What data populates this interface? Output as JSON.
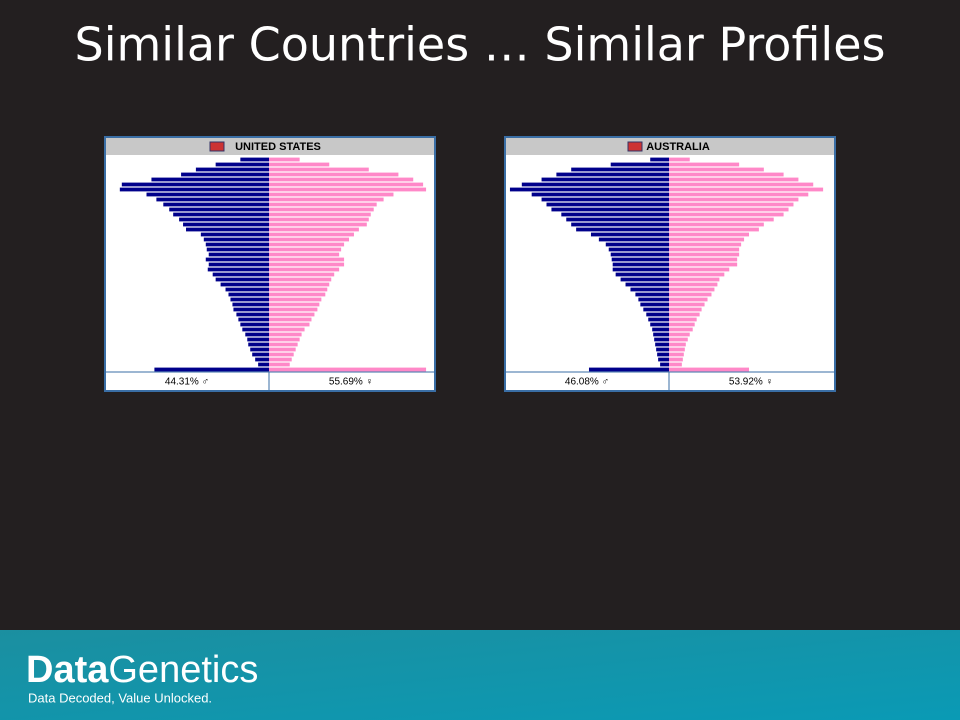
{
  "title": "Similar Countries … Similar Profiles",
  "brand": {
    "bold": "Data",
    "light": "Genetics",
    "tagline": "Data Decoded, Value Unlocked."
  },
  "chart_data": [
    {
      "type": "pyramid",
      "title": "UNITED STATES",
      "xlim": [
        0,
        165
      ],
      "footer": [
        "44.31% ♂",
        "55.69% ♀"
      ],
      "series": [
        {
          "color": "#00008b",
          "values": [
            29,
            54,
            74,
            89,
            119,
            149,
            151,
            124,
            114,
            107,
            101,
            97,
            91,
            87,
            84,
            69,
            66,
            64,
            63,
            61,
            64,
            61,
            62,
            57,
            54,
            49,
            44,
            41,
            39,
            37,
            36,
            33,
            31,
            29,
            27,
            24,
            22,
            21,
            19,
            17,
            14,
            11,
            116
          ]
        },
        {
          "color": "#ff88c8",
          "values": [
            31,
            61,
            101,
            131,
            146,
            156,
            159,
            126,
            116,
            109,
            106,
            103,
            101,
            99,
            91,
            86,
            81,
            76,
            73,
            71,
            76,
            76,
            71,
            66,
            63,
            61,
            59,
            57,
            53,
            51,
            49,
            46,
            43,
            41,
            36,
            33,
            31,
            29,
            27,
            25,
            23,
            21,
            159
          ]
        }
      ]
    },
    {
      "type": "pyramid",
      "title": "AUSTRALIA",
      "xlim": [
        0,
        165
      ],
      "footer": [
        "46.08% ♂",
        "53.92% ♀"
      ],
      "series": [
        {
          "color": "#00008b",
          "values": [
            19,
            59,
            99,
            114,
            129,
            149,
            161,
            139,
            129,
            124,
            119,
            109,
            104,
            99,
            94,
            79,
            71,
            64,
            61,
            59,
            58,
            57,
            57,
            54,
            49,
            44,
            39,
            34,
            31,
            29,
            26,
            23,
            21,
            19,
            17,
            16,
            15,
            14,
            13,
            12,
            11,
            9,
            81
          ]
        },
        {
          "color": "#ff88c8",
          "values": [
            21,
            71,
            96,
            116,
            131,
            146,
            156,
            141,
            131,
            126,
            121,
            116,
            106,
            96,
            91,
            81,
            76,
            73,
            71,
            71,
            69,
            69,
            61,
            56,
            51,
            49,
            46,
            43,
            39,
            36,
            33,
            31,
            28,
            26,
            24,
            21,
            19,
            17,
            16,
            15,
            14,
            13,
            81
          ]
        }
      ]
    }
  ]
}
